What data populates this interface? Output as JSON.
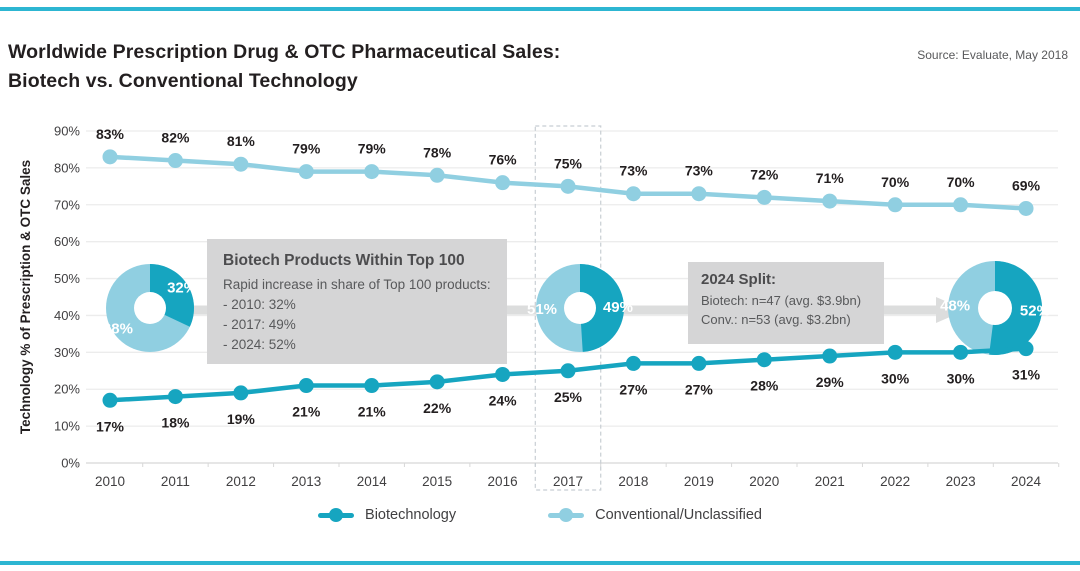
{
  "header": {
    "title_line1": "Worldwide Prescription Drug & OTC Pharmaceutical Sales:",
    "title_line2": "Biotech vs. Conventional Technology",
    "source": "Source: Evaluate, May 2018"
  },
  "colors": {
    "accent_bar": "#2db6d2",
    "biotech": "#16a5c0",
    "conventional": "#90cfe1",
    "annotation_bg": "#d5d5d6",
    "arrow": "#dcdddd",
    "grid": "#ececec",
    "axis": "#d8d8d8",
    "text_dark": "#231f20",
    "text_gray": "#58595b",
    "tick_text": "#414042",
    "donut_label_text": "#ffffff"
  },
  "chart_data": {
    "type": "line",
    "title": "Worldwide Prescription Drug & OTC Pharmaceutical Sales: Biotech vs. Conventional Technology",
    "ylabel": "Technology % of Prescription & OTC Sales",
    "x": [
      2010,
      2011,
      2012,
      2013,
      2014,
      2015,
      2016,
      2017,
      2018,
      2019,
      2020,
      2021,
      2022,
      2023,
      2024
    ],
    "series": [
      {
        "name": "Biotechnology",
        "color": "#16a5c0",
        "values": [
          17,
          18,
          19,
          21,
          21,
          22,
          24,
          25,
          27,
          27,
          28,
          29,
          30,
          30,
          31
        ]
      },
      {
        "name": "Conventional/Unclassified",
        "color": "#90cfe1",
        "values": [
          83,
          82,
          81,
          79,
          79,
          78,
          76,
          75,
          73,
          73,
          72,
          71,
          70,
          70,
          69
        ]
      }
    ],
    "ylim": [
      0,
      90
    ],
    "ytick_step": 10,
    "grid": "horizontal",
    "legend_position": "bottom",
    "highlighted_year": 2017,
    "donuts": [
      {
        "year": 2010,
        "biotech_pct": 32,
        "conventional_pct": 68
      },
      {
        "year": 2017,
        "biotech_pct": 49,
        "conventional_pct": 51
      },
      {
        "year": 2024,
        "biotech_pct": 52,
        "conventional_pct": 48
      }
    ],
    "annotations": [
      {
        "title": "Biotech Products Within Top 100",
        "lines": [
          "Rapid increase in share of Top 100 products:",
          "- 2010: 32%",
          "- 2017: 49%",
          "- 2024: 52%"
        ]
      },
      {
        "title": "2024 Split:",
        "lines": [
          "Biotech: n=47 (avg. $3.9bn)",
          "Conv.: n=53 (avg. $3.2bn)"
        ]
      }
    ]
  }
}
